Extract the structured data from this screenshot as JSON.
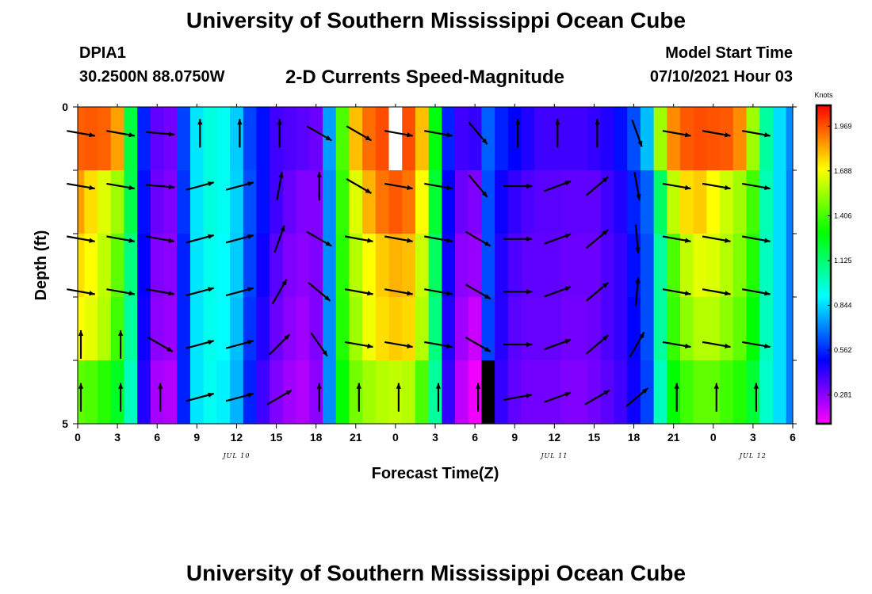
{
  "header": {
    "title": "University of Southern Mississippi Ocean Cube",
    "station_id": "DPIA1",
    "station_coords": "30.2500N  88.0750W",
    "plot_title": "2-D Currents Speed-Magnitude",
    "model_label": "Model Start Time",
    "model_time": "07/10/2021 Hour 03"
  },
  "footer": {
    "title": "University of Southern Mississippi Ocean Cube"
  },
  "chart_data": {
    "type": "heatmap",
    "title": "2-D Currents Speed-Magnitude",
    "xlabel": "Forecast Time(Z)",
    "ylabel": "Depth (ft)",
    "x_tick_labels": [
      "0",
      "3",
      "6",
      "9",
      "12",
      "15",
      "18",
      "21",
      "0",
      "3",
      "6",
      "9",
      "12",
      "15",
      "18",
      "21",
      "0",
      "3",
      "6"
    ],
    "date_labels": [
      {
        "text": "JUL 10",
        "tick_index": 4
      },
      {
        "text": "JUL 11",
        "tick_index": 12
      },
      {
        "text": "JUL 12",
        "tick_index": 17
      }
    ],
    "y_tick_labels": [
      "0",
      "5"
    ],
    "ylim": [
      0,
      5
    ],
    "colorbar": {
      "unit": "Knots",
      "min": 0.1,
      "max": 2.1,
      "ticks": [
        "1.969",
        "1.688",
        "1.406",
        "1.125",
        "0.844",
        "0.562",
        "0.281"
      ]
    },
    "time_hours": [
      0,
      1,
      2,
      3,
      4,
      5,
      6,
      7,
      8,
      9,
      10,
      11,
      12,
      13,
      14,
      15,
      16,
      17,
      18,
      19,
      20,
      21,
      22,
      23,
      24,
      25,
      26,
      27,
      28,
      29,
      30,
      31,
      32,
      33,
      34,
      35,
      36,
      37,
      38,
      39,
      40,
      41,
      42,
      43,
      44,
      45,
      46,
      47,
      48,
      49,
      50,
      51,
      52,
      53,
      54
    ],
    "depth_rows": 5,
    "speed": [
      [
        1.95,
        1.96,
        1.95,
        1.85,
        1.2,
        0.55,
        0.35,
        0.32,
        0.6,
        0.86,
        0.95,
        0.92,
        0.82,
        0.6,
        0.52,
        0.4,
        0.38,
        0.36,
        0.33,
        0.75,
        1.42,
        1.8,
        1.93,
        1.98,
        2.0,
        1.98,
        1.8,
        1.28,
        0.55,
        0.4,
        0.42,
        0.65,
        0.55,
        0.5,
        0.45,
        0.4,
        0.4,
        0.4,
        0.4,
        0.42,
        0.45,
        0.52,
        0.62,
        0.8,
        1.55,
        1.88,
        1.96,
        1.98,
        1.97,
        1.96,
        1.88,
        1.55,
        1.05,
        0.85,
        0.72
      ],
      [
        1.85,
        1.75,
        1.65,
        1.55,
        1.18,
        0.52,
        0.33,
        0.3,
        0.58,
        0.86,
        0.95,
        0.92,
        0.83,
        0.62,
        0.52,
        0.4,
        0.34,
        0.3,
        0.3,
        0.72,
        1.38,
        1.65,
        1.82,
        1.92,
        1.96,
        1.92,
        1.7,
        1.22,
        0.5,
        0.33,
        0.3,
        0.62,
        0.48,
        0.42,
        0.38,
        0.36,
        0.36,
        0.35,
        0.35,
        0.35,
        0.4,
        0.45,
        0.55,
        0.65,
        1.15,
        1.6,
        1.75,
        1.78,
        1.7,
        1.62,
        1.55,
        1.4,
        1.02,
        0.85,
        0.7
      ],
      [
        1.75,
        1.7,
        1.6,
        1.45,
        1.1,
        0.5,
        0.3,
        0.28,
        0.55,
        0.86,
        0.93,
        0.9,
        0.82,
        0.6,
        0.48,
        0.36,
        0.3,
        0.28,
        0.3,
        0.72,
        1.36,
        1.58,
        1.7,
        1.78,
        1.82,
        1.8,
        1.62,
        1.15,
        0.48,
        0.28,
        0.26,
        0.62,
        0.45,
        0.38,
        0.35,
        0.35,
        0.35,
        0.33,
        0.33,
        0.33,
        0.38,
        0.42,
        0.52,
        0.62,
        1.05,
        1.42,
        1.6,
        1.66,
        1.64,
        1.58,
        1.5,
        1.35,
        1.0,
        0.85,
        0.7
      ],
      [
        1.7,
        1.66,
        1.58,
        1.4,
        1.05,
        0.48,
        0.28,
        0.26,
        0.55,
        0.86,
        0.93,
        0.9,
        0.8,
        0.58,
        0.45,
        0.33,
        0.28,
        0.25,
        0.3,
        0.72,
        1.35,
        1.55,
        1.68,
        1.75,
        1.78,
        1.76,
        1.58,
        1.1,
        0.45,
        0.25,
        0.18,
        0.6,
        0.44,
        0.36,
        0.34,
        0.34,
        0.34,
        0.32,
        0.32,
        0.33,
        0.38,
        0.42,
        0.5,
        0.62,
        1.05,
        1.38,
        1.52,
        1.58,
        1.58,
        1.52,
        1.45,
        1.3,
        1.0,
        0.85,
        0.7
      ],
      [
        1.45,
        1.42,
        1.36,
        1.25,
        1.0,
        0.45,
        0.24,
        0.22,
        0.55,
        0.86,
        0.92,
        0.88,
        0.78,
        0.55,
        0.4,
        0.3,
        0.25,
        0.22,
        0.28,
        0.72,
        1.3,
        1.48,
        1.55,
        1.58,
        1.6,
        1.58,
        1.42,
        1.05,
        0.42,
        0.2,
        0.12,
        0.55,
        0.42,
        0.35,
        0.32,
        0.32,
        0.32,
        0.3,
        0.3,
        0.32,
        0.36,
        0.4,
        0.48,
        0.6,
        1.0,
        1.3,
        1.4,
        1.45,
        1.45,
        1.4,
        1.35,
        1.22,
        0.98,
        0.85,
        0.7
      ]
    ],
    "missing_cells": [
      {
        "time_hour": 24,
        "depth_row": 0,
        "color": "#ffffff"
      },
      {
        "time_hour": 31,
        "depth_row": 4,
        "color": "#000000"
      }
    ],
    "arrows": {
      "times": [
        0,
        3,
        6,
        9,
        12,
        15,
        18,
        21,
        24,
        27,
        30,
        33,
        36,
        39,
        42,
        45,
        48,
        51
      ],
      "angles_deg": [
        [
          100,
          100,
          95,
          0,
          0,
          0,
          120,
          120,
          100,
          100,
          140,
          0,
          0,
          0,
          160,
          100,
          100,
          100
        ],
        [
          100,
          100,
          95,
          75,
          75,
          10,
          0,
          120,
          100,
          100,
          140,
          90,
          70,
          50,
          170,
          100,
          100,
          100
        ],
        [
          100,
          100,
          100,
          75,
          75,
          20,
          120,
          100,
          100,
          100,
          120,
          90,
          70,
          50,
          175,
          100,
          100,
          100
        ],
        [
          100,
          100,
          100,
          75,
          75,
          30,
          130,
          100,
          100,
          100,
          120,
          90,
          70,
          50,
          5,
          100,
          100,
          100
        ],
        [
          0,
          0,
          120,
          75,
          75,
          45,
          145,
          100,
          100,
          100,
          120,
          90,
          70,
          50,
          30,
          100,
          100,
          100
        ],
        [
          0,
          0,
          0,
          75,
          75,
          60,
          0,
          0,
          0,
          0,
          0,
          80,
          70,
          60,
          50,
          0,
          0,
          0
        ]
      ]
    }
  }
}
